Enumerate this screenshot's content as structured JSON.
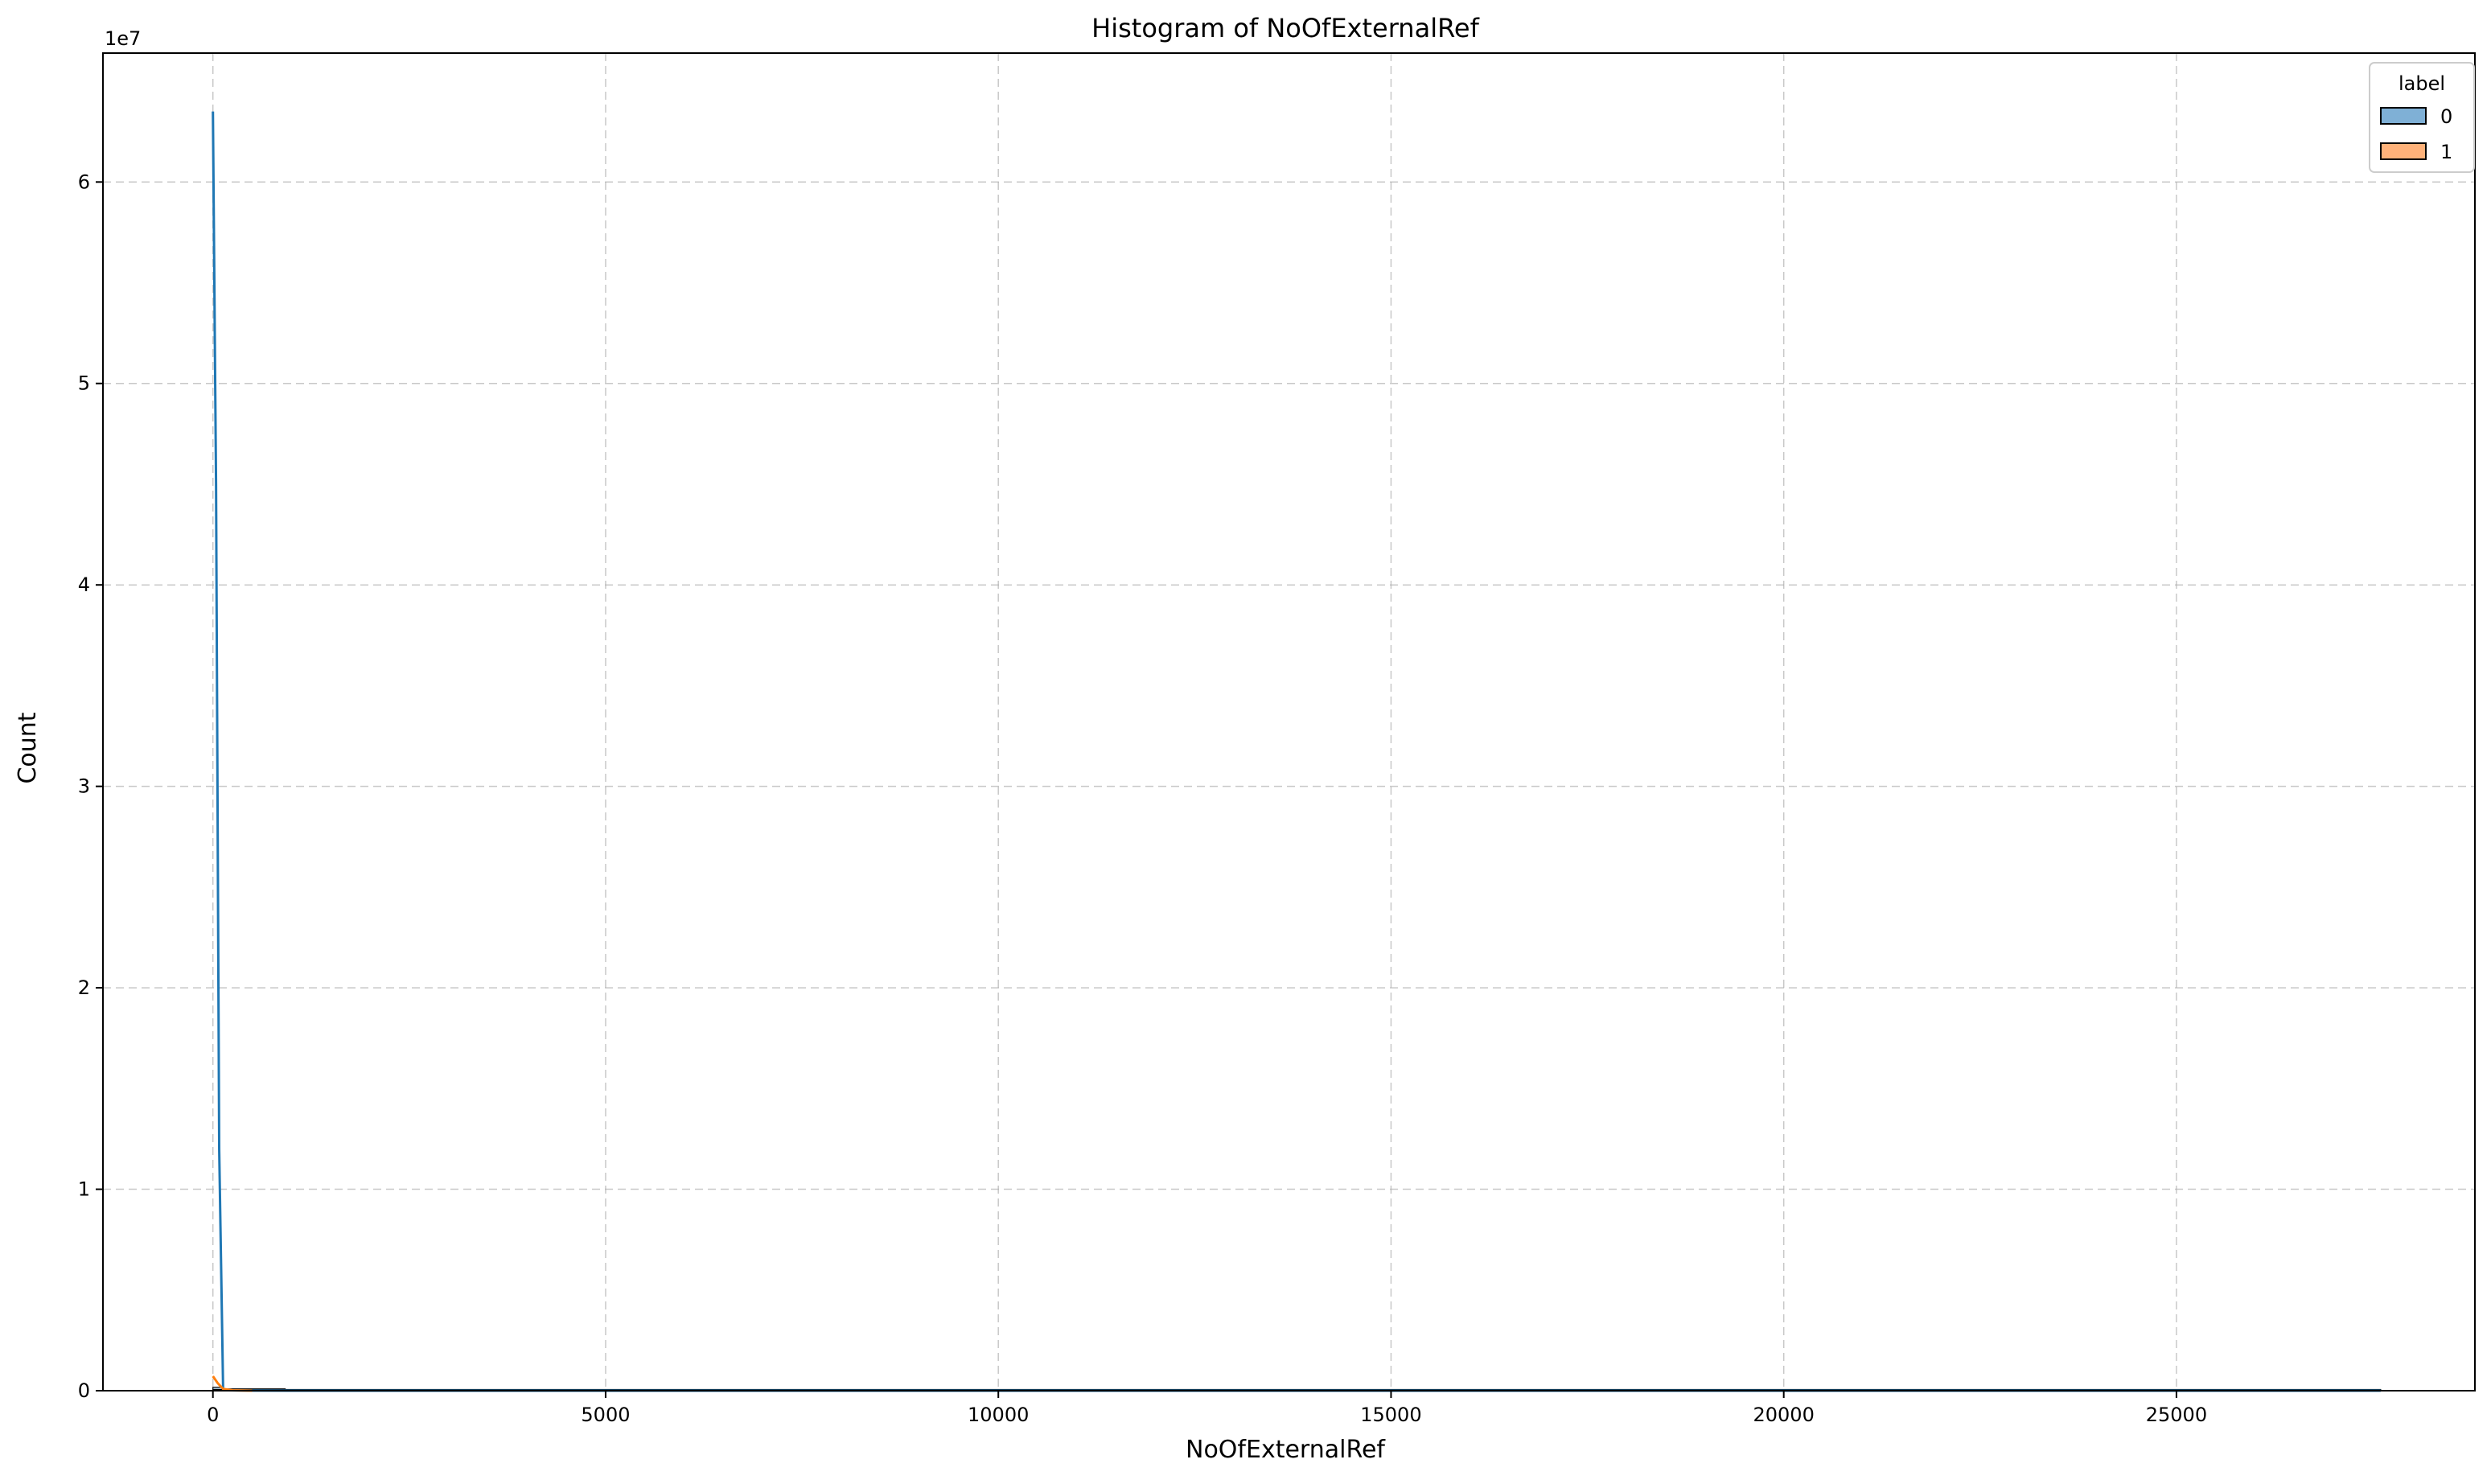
{
  "chart_data": {
    "type": "bar",
    "title": "Histogram of NoOfExternalRef",
    "xlabel": "NoOfExternalRef",
    "ylabel": "Count",
    "y_offset_text": "1e7",
    "xlim": [
      -1400,
      28800
    ],
    "ylim": [
      0,
      66400000
    ],
    "x_ticks": [
      0,
      5000,
      10000,
      15000,
      20000,
      25000
    ],
    "x_tick_labels": [
      "0",
      "5000",
      "10000",
      "15000",
      "20000",
      "25000"
    ],
    "y_ticks": [
      0,
      10000000,
      20000000,
      30000000,
      40000000,
      50000000,
      60000000
    ],
    "y_tick_labels": [
      "0",
      "1",
      "2",
      "3",
      "4",
      "5",
      "6"
    ],
    "grid": true,
    "legend": {
      "title": "label",
      "placement": "top-right"
    },
    "series": [
      {
        "name": "0",
        "color": "#1f77b4",
        "fill": "#7fb0d6",
        "bins": [
          [
            0,
            130,
            170000
          ],
          [
            130,
            920,
            90000
          ],
          [
            920,
            27600,
            0
          ]
        ],
        "kde": [
          [
            0,
            63500000
          ],
          [
            40,
            45000000
          ],
          [
            80,
            12000000
          ],
          [
            130,
            60000
          ],
          [
            200,
            20000
          ],
          [
            500,
            5000
          ],
          [
            1000,
            0
          ],
          [
            27600,
            0
          ]
        ]
      },
      {
        "name": "1",
        "color": "#ff7f0e",
        "fill": "#ffb27a",
        "bins": [
          [
            0,
            130,
            60000
          ],
          [
            130,
            920,
            15000
          ]
        ],
        "kde": [
          [
            0,
            720000
          ],
          [
            60,
            380000
          ],
          [
            130,
            90000
          ],
          [
            250,
            20000
          ],
          [
            500,
            0
          ]
        ]
      }
    ]
  }
}
